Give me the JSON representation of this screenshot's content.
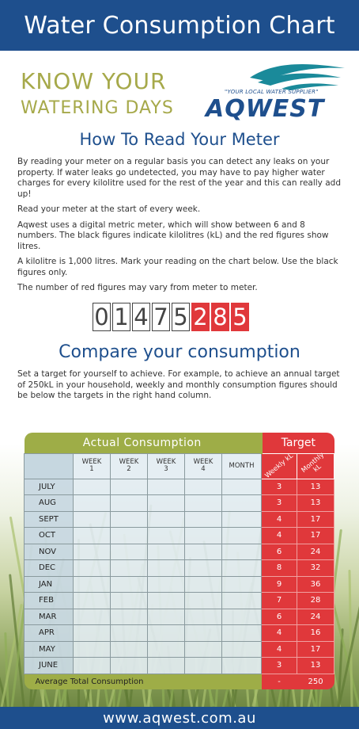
{
  "header": {
    "title": "Water Consumption Chart"
  },
  "headline": {
    "line1": "KNOW YOUR",
    "line2": "WATERING DAYS"
  },
  "logo": {
    "tagline": "\"YOUR LOCAL WATER SUPPLIER\"",
    "brand": "AQWEST"
  },
  "read_section": {
    "title": "How To Read Your Meter",
    "paragraphs": [
      "By reading your meter on a regular basis you can detect any leaks on your property. If water leaks go undetected, you may have to pay higher water charges for every kilolitre used for the rest of the year and this can really add up!",
      "Read your meter at the start of every week.",
      "Aqwest uses a digital metric meter, which will show between 6 and 8 numbers. The black figures indicate kilolitres (kL) and the red figures show litres.",
      "A kilolitre is 1,000 litres. Mark your reading on the chart below. Use the black figures only.",
      "The number of red figures may vary from meter to meter."
    ]
  },
  "meter": {
    "black_digits": [
      "0",
      "1",
      "4",
      "7",
      "5"
    ],
    "red_digits": [
      "2",
      "8",
      "5"
    ]
  },
  "compare_section": {
    "title": "Compare your consumption",
    "text": "Set a target for yourself to achieve. For example, to achieve an annual target of 250kL in your household, weekly and monthly consumption figures should be below the targets in the right hand column."
  },
  "table": {
    "actual_header": "Actual Consumption",
    "target_header": "Target",
    "columns": [
      "WEEK\n1",
      "WEEK\n2",
      "WEEK\n3",
      "WEEK\n4",
      "MONTH"
    ],
    "target_columns": [
      "Weekly kL",
      "Monthly kL"
    ],
    "rows": [
      {
        "month": "JULY",
        "weekly": "3",
        "monthly": "13"
      },
      {
        "month": "AUG",
        "weekly": "3",
        "monthly": "13"
      },
      {
        "month": "SEPT",
        "weekly": "4",
        "monthly": "17"
      },
      {
        "month": "OCT",
        "weekly": "4",
        "monthly": "17"
      },
      {
        "month": "NOV",
        "weekly": "6",
        "monthly": "24"
      },
      {
        "month": "DEC",
        "weekly": "8",
        "monthly": "32"
      },
      {
        "month": "JAN",
        "weekly": "9",
        "monthly": "36"
      },
      {
        "month": "FEB",
        "weekly": "7",
        "monthly": "28"
      },
      {
        "month": "MAR",
        "weekly": "6",
        "monthly": "24"
      },
      {
        "month": "APR",
        "weekly": "4",
        "monthly": "16"
      },
      {
        "month": "MAY",
        "weekly": "4",
        "monthly": "17"
      },
      {
        "month": "JUNE",
        "weekly": "3",
        "monthly": "13"
      }
    ],
    "average_label": "Average Total Consumption",
    "average_weekly": "-",
    "average_monthly": "250"
  },
  "footer": {
    "url": "www.aqwest.com.au"
  },
  "colors": {
    "navy": "#1e4f8d",
    "olive": "#9ead47",
    "red": "#e0383b",
    "headline": "#a6a94a"
  }
}
